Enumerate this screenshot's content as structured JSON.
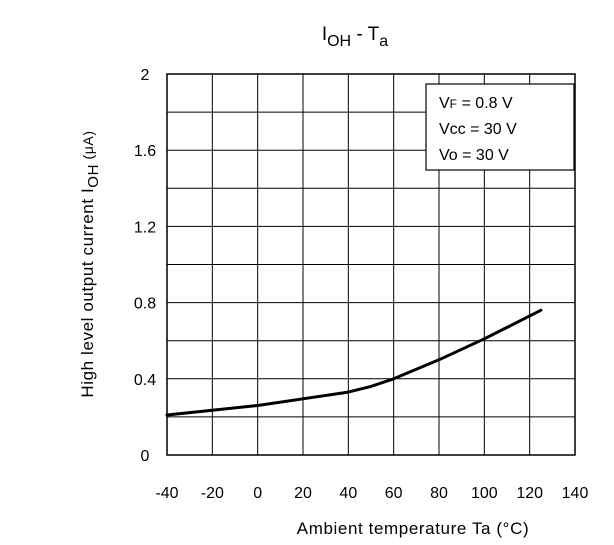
{
  "chart_data": {
    "type": "line",
    "title": "I",
    "title_sub": "OH",
    "title_rest": " - T",
    "title_sub2": "a",
    "xlabel": "Ambient temperature Ta (°C)",
    "ylabel": "High level output current I",
    "ylabel_sub": "OH",
    "ylabel_unit": " (μA)",
    "xlim": [
      -40,
      140
    ],
    "ylim": [
      0,
      2
    ],
    "xticks": [
      "-40",
      "-20",
      "0",
      "20",
      "40",
      "60",
      "80",
      "100",
      "120",
      "140"
    ],
    "yticks": [
      "0",
      "0.4",
      "0.8",
      "1.2",
      "1.6",
      "2"
    ],
    "grid": true,
    "x_grid_step": 20,
    "y_grid_step": 0.2,
    "series": [
      {
        "x": [
          -40,
          -20,
          0,
          20,
          40,
          50,
          60,
          70,
          80,
          100,
          110,
          125
        ],
        "y": [
          0.21,
          0.235,
          0.26,
          0.295,
          0.33,
          0.36,
          0.4,
          0.45,
          0.5,
          0.61,
          0.67,
          0.76
        ]
      }
    ],
    "legend_box": {
      "position": "top-right",
      "lines": [
        {
          "main": "V",
          "sub": "F",
          "rest": " = 0.8 V"
        },
        {
          "main": "Vcc",
          "sub": "",
          "rest": " = 30 V"
        },
        {
          "main": "Vo",
          "sub": "",
          "rest": " = 30 V"
        }
      ]
    }
  }
}
